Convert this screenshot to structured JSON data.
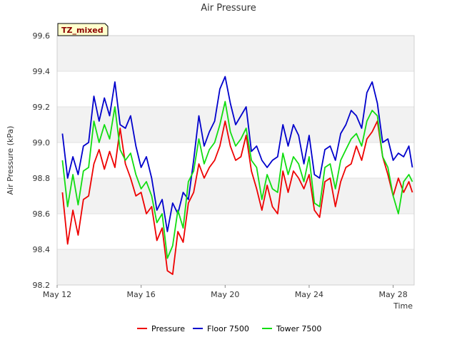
{
  "chart_data": {
    "type": "line",
    "title": "Air Pressure",
    "xlabel": "Time",
    "ylabel": "Air Pressure (kPa)",
    "ylim": [
      98.2,
      99.6
    ],
    "xlim": [
      "2024-05-12",
      "2024-05-29"
    ],
    "yticks": [
      "98.2",
      "98.4",
      "98.6",
      "98.8",
      "99.0",
      "99.2",
      "99.4",
      "99.6"
    ],
    "xticks": [
      {
        "date": "2024-05-12",
        "label": "May 12"
      },
      {
        "date": "2024-05-16",
        "label": "May 16"
      },
      {
        "date": "2024-05-20",
        "label": "May 20"
      },
      {
        "date": "2024-05-24",
        "label": "May 24"
      },
      {
        "date": "2024-05-28",
        "label": "May 28"
      }
    ],
    "grid": true,
    "legend_position": "bottom",
    "annotation": "TZ_mixed",
    "x": [
      "2024-05-12T06:00",
      "2024-05-12T12:00",
      "2024-05-12T18:00",
      "2024-05-13T00:00",
      "2024-05-13T06:00",
      "2024-05-13T12:00",
      "2024-05-13T18:00",
      "2024-05-14T00:00",
      "2024-05-14T06:00",
      "2024-05-14T12:00",
      "2024-05-14T18:00",
      "2024-05-15T00:00",
      "2024-05-15T06:00",
      "2024-05-15T12:00",
      "2024-05-15T18:00",
      "2024-05-16T00:00",
      "2024-05-16T06:00",
      "2024-05-16T12:00",
      "2024-05-16T18:00",
      "2024-05-17T00:00",
      "2024-05-17T06:00",
      "2024-05-17T12:00",
      "2024-05-17T18:00",
      "2024-05-18T00:00",
      "2024-05-18T06:00",
      "2024-05-18T12:00",
      "2024-05-18T18:00",
      "2024-05-19T00:00",
      "2024-05-19T06:00",
      "2024-05-19T12:00",
      "2024-05-19T18:00",
      "2024-05-20T00:00",
      "2024-05-20T06:00",
      "2024-05-20T12:00",
      "2024-05-20T18:00",
      "2024-05-21T00:00",
      "2024-05-21T06:00",
      "2024-05-21T12:00",
      "2024-05-21T18:00",
      "2024-05-22T00:00",
      "2024-05-22T06:00",
      "2024-05-22T12:00",
      "2024-05-22T18:00",
      "2024-05-23T00:00",
      "2024-05-23T06:00",
      "2024-05-23T12:00",
      "2024-05-23T18:00",
      "2024-05-24T00:00",
      "2024-05-24T06:00",
      "2024-05-24T12:00",
      "2024-05-24T18:00",
      "2024-05-25T00:00",
      "2024-05-25T06:00",
      "2024-05-25T12:00",
      "2024-05-25T18:00",
      "2024-05-26T00:00",
      "2024-05-26T06:00",
      "2024-05-26T12:00",
      "2024-05-26T18:00",
      "2024-05-27T00:00",
      "2024-05-27T06:00",
      "2024-05-27T12:00",
      "2024-05-27T18:00",
      "2024-05-28T00:00",
      "2024-05-28T06:00",
      "2024-05-28T12:00",
      "2024-05-28T18:00",
      "2024-05-28T22:00"
    ],
    "series": [
      {
        "name": "Pressure",
        "color": "#ee0000",
        "values": [
          98.72,
          98.43,
          98.62,
          98.48,
          98.68,
          98.7,
          98.88,
          98.96,
          98.85,
          98.95,
          98.86,
          99.08,
          98.88,
          98.8,
          98.7,
          98.72,
          98.6,
          98.64,
          98.45,
          98.52,
          98.28,
          98.26,
          98.5,
          98.44,
          98.66,
          98.72,
          98.88,
          98.8,
          98.86,
          98.9,
          98.98,
          99.12,
          98.98,
          98.9,
          98.92,
          99.04,
          98.84,
          98.74,
          98.62,
          98.76,
          98.64,
          98.6,
          98.84,
          98.72,
          98.84,
          98.8,
          98.74,
          98.82,
          98.62,
          98.58,
          98.78,
          98.8,
          98.64,
          98.78,
          98.86,
          98.88,
          98.98,
          98.9,
          99.02,
          99.06,
          99.12,
          98.92,
          98.82,
          98.7,
          98.8,
          98.72,
          98.78,
          98.72
        ]
      },
      {
        "name": "Floor 7500",
        "color": "#0000cc",
        "values": [
          99.05,
          98.8,
          98.92,
          98.82,
          98.98,
          99.0,
          99.26,
          99.12,
          99.25,
          99.15,
          99.34,
          99.1,
          99.08,
          99.15,
          98.98,
          98.86,
          98.92,
          98.8,
          98.62,
          98.68,
          98.5,
          98.66,
          98.6,
          98.72,
          98.68,
          98.9,
          99.15,
          98.98,
          99.06,
          99.12,
          99.3,
          99.37,
          99.22,
          99.1,
          99.15,
          99.2,
          98.95,
          98.98,
          98.9,
          98.86,
          98.9,
          98.92,
          99.1,
          98.98,
          99.1,
          99.04,
          98.88,
          99.04,
          98.82,
          98.8,
          98.96,
          98.98,
          98.9,
          99.05,
          99.1,
          99.18,
          99.15,
          99.08,
          99.28,
          99.34,
          99.22,
          99.0,
          99.02,
          98.9,
          98.94,
          98.92,
          98.98,
          98.86
        ]
      },
      {
        "name": "Tower 7500",
        "color": "#11dd11",
        "values": [
          98.9,
          98.64,
          98.82,
          98.65,
          98.84,
          98.86,
          99.12,
          99.0,
          99.1,
          99.02,
          99.2,
          98.96,
          98.9,
          98.94,
          98.82,
          98.74,
          98.78,
          98.7,
          98.55,
          98.6,
          98.35,
          98.42,
          98.62,
          98.52,
          98.78,
          98.84,
          99.02,
          98.88,
          98.96,
          99.0,
          99.1,
          99.23,
          99.06,
          98.98,
          99.02,
          99.08,
          98.9,
          98.86,
          98.68,
          98.82,
          98.74,
          98.72,
          98.94,
          98.82,
          98.92,
          98.88,
          98.78,
          98.92,
          98.66,
          98.64,
          98.86,
          98.88,
          98.74,
          98.9,
          98.96,
          99.02,
          99.05,
          98.98,
          99.12,
          99.18,
          99.15,
          98.92,
          98.86,
          98.7,
          98.6,
          98.78,
          98.82,
          98.78
        ]
      }
    ]
  }
}
